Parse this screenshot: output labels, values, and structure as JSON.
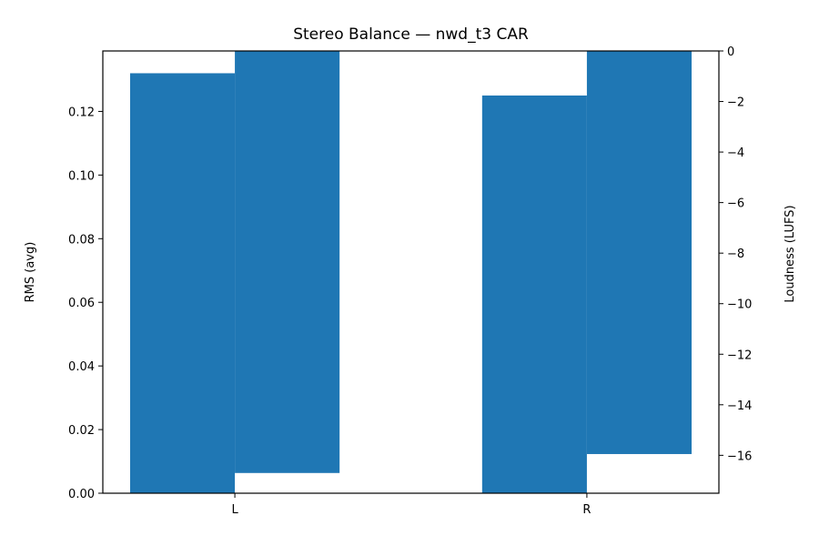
{
  "chart_data": {
    "type": "bar",
    "title": "Stereo Balance — nwd_t3 CAR",
    "categories": [
      "L",
      "R"
    ],
    "left_axis": {
      "label": "RMS (avg)",
      "ylim": [
        0,
        0.139
      ],
      "ticks": [
        0.0,
        0.02,
        0.04,
        0.06,
        0.08,
        0.1,
        0.12
      ],
      "tick_labels": [
        "0.00",
        "0.02",
        "0.04",
        "0.06",
        "0.08",
        "0.10",
        "0.12"
      ]
    },
    "right_axis": {
      "label": "Loudness (LUFS)",
      "ylim": [
        -17.5,
        0
      ],
      "ticks": [
        0,
        -2,
        -4,
        -6,
        -8,
        -10,
        -12,
        -14,
        -16
      ],
      "tick_labels": [
        "0",
        "−2",
        "−4",
        "−6",
        "−8",
        "−10",
        "−12",
        "−14",
        "−16"
      ]
    },
    "series": [
      {
        "axis": "left",
        "values": [
          0.132,
          0.125
        ],
        "color": "#1f77b4"
      },
      {
        "axis": "right",
        "values": [
          -16.7,
          -15.95
        ],
        "color": "#1f77b4"
      }
    ],
    "grid": false
  }
}
